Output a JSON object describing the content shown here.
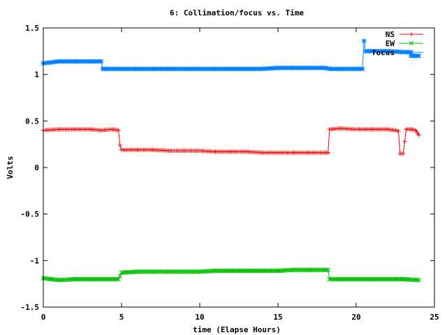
{
  "chart_data": {
    "type": "line",
    "title": "6: Collimation/focus vs. Time",
    "xlabel": "time (Elapse Hours)",
    "ylabel": "Volts",
    "xlim": [
      0,
      25
    ],
    "ylim": [
      -1.5,
      1.5
    ],
    "xticks": [
      0,
      5,
      10,
      15,
      20,
      25
    ],
    "yticks": [
      -1.5,
      -1,
      -0.5,
      0,
      0.5,
      1,
      1.5
    ],
    "xtick_labels": [
      "0",
      "5",
      "10",
      "15",
      "20",
      "25"
    ],
    "ytick_labels": [
      "-1.5",
      "-1",
      "-0.5",
      "0",
      "0.5",
      "1",
      "1.5"
    ],
    "grid": false,
    "legend_position": "top-right",
    "series": [
      {
        "name": "NS",
        "color": "#ff0000",
        "marker": "plus",
        "x": [
          0,
          1,
          2,
          3,
          3.7,
          4.4,
          4.8,
          4.9,
          5.0,
          6,
          7,
          8,
          9,
          10,
          11,
          12,
          13,
          14,
          15,
          16,
          17,
          18,
          18.2,
          18.3,
          19,
          20,
          21,
          22,
          22.5,
          22.7,
          22.8,
          23.0,
          23.2,
          23.5,
          23.8,
          24.0
        ],
        "y": [
          0.4,
          0.41,
          0.41,
          0.41,
          0.4,
          0.41,
          0.4,
          0.24,
          0.19,
          0.19,
          0.19,
          0.18,
          0.18,
          0.18,
          0.17,
          0.17,
          0.17,
          0.16,
          0.16,
          0.16,
          0.16,
          0.16,
          0.16,
          0.41,
          0.42,
          0.41,
          0.41,
          0.41,
          0.4,
          0.39,
          0.15,
          0.15,
          0.41,
          0.41,
          0.4,
          0.35
        ]
      },
      {
        "name": "EW",
        "color": "#00c000",
        "marker": "cross",
        "x": [
          0,
          0.5,
          1,
          2,
          3,
          4,
          4.8,
          5.0,
          6,
          7,
          8,
          9,
          10,
          11,
          12,
          13,
          14,
          15,
          16,
          17,
          18,
          18.2,
          18.3,
          19,
          20,
          21,
          22,
          23,
          24
        ],
        "y": [
          -1.19,
          -1.2,
          -1.21,
          -1.2,
          -1.2,
          -1.2,
          -1.2,
          -1.13,
          -1.12,
          -1.12,
          -1.12,
          -1.12,
          -1.12,
          -1.11,
          -1.11,
          -1.11,
          -1.11,
          -1.11,
          -1.1,
          -1.1,
          -1.1,
          -1.1,
          -1.2,
          -1.2,
          -1.2,
          -1.2,
          -1.2,
          -1.2,
          -1.21
        ]
      },
      {
        "name": "focus",
        "color": "#0080ff",
        "marker": "star",
        "x": [
          0,
          0.5,
          1,
          2,
          3,
          3.7,
          3.8,
          4,
          5,
          6,
          7,
          8,
          9,
          10,
          11,
          12,
          13,
          14,
          15,
          16,
          17,
          18,
          18.3,
          19,
          20,
          20.4,
          20.5,
          20.6,
          21,
          22,
          23,
          23.4,
          23.5,
          23.8,
          24.0
        ],
        "y": [
          1.12,
          1.13,
          1.14,
          1.14,
          1.14,
          1.14,
          1.06,
          1.06,
          1.06,
          1.06,
          1.06,
          1.06,
          1.06,
          1.06,
          1.06,
          1.06,
          1.06,
          1.06,
          1.07,
          1.07,
          1.07,
          1.07,
          1.06,
          1.06,
          1.06,
          1.06,
          1.36,
          1.25,
          1.25,
          1.25,
          1.24,
          1.24,
          1.2,
          1.2,
          1.2
        ]
      }
    ]
  }
}
